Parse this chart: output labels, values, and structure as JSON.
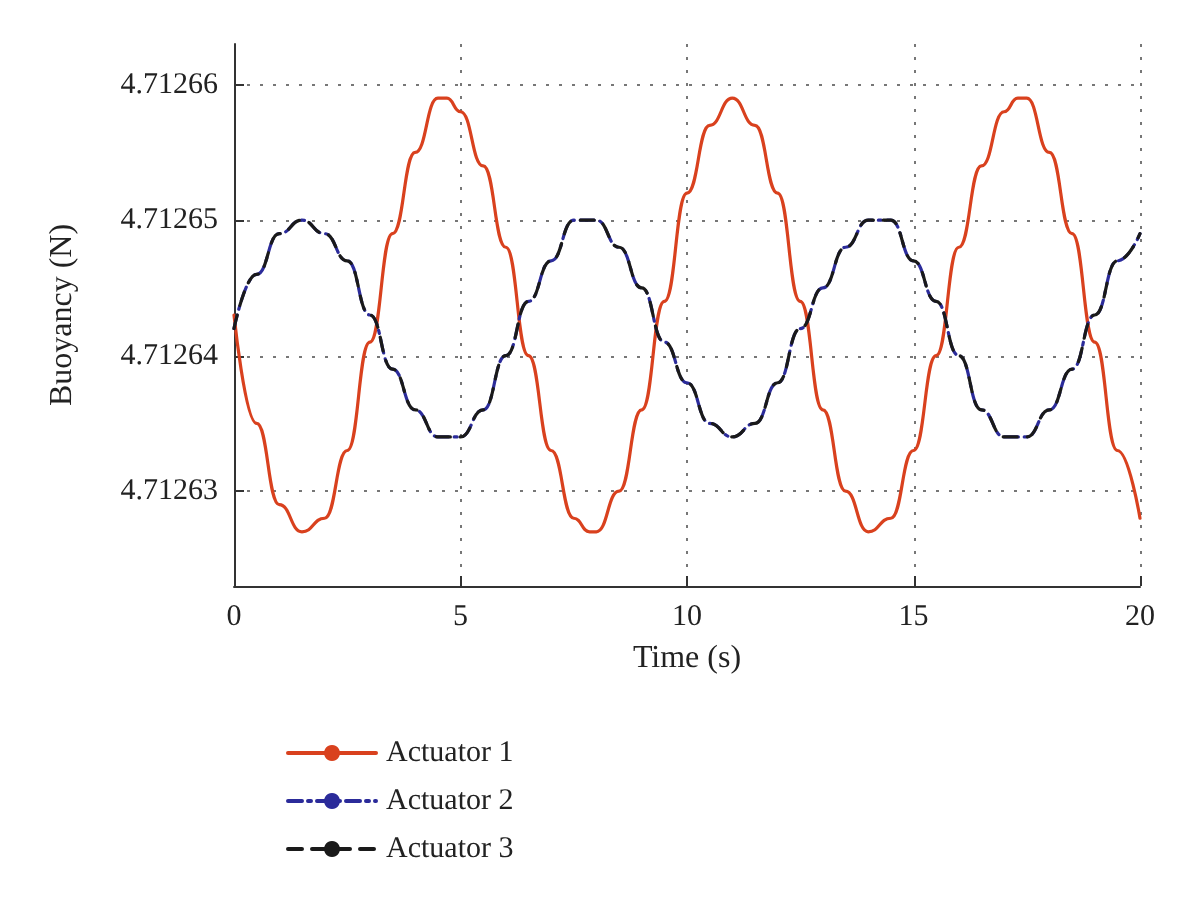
{
  "chart_data": {
    "type": "line",
    "xlabel": "Time (s)",
    "ylabel": "Buoyancy (N)",
    "x": [
      0,
      0.5,
      1,
      1.5,
      2,
      2.5,
      3,
      3.5,
      4,
      4.5,
      4.7,
      5,
      5.5,
      6,
      6.5,
      7,
      7.5,
      7.85,
      8,
      8.5,
      9,
      9.5,
      10,
      10.5,
      11,
      11.5,
      12,
      12.5,
      13,
      13.5,
      14,
      14.5,
      15,
      15.5,
      16,
      16.5,
      17,
      17.3,
      17.5,
      18,
      18.5,
      19,
      19.5,
      20
    ],
    "series": [
      {
        "name": "Actuator 1",
        "color": "#d9411e",
        "line_style": "solid",
        "values": [
          4.712643,
          4.712635,
          4.712629,
          4.712627,
          4.712628,
          4.712633,
          4.712641,
          4.712649,
          4.712655,
          4.712659,
          4.712659,
          4.712658,
          4.712654,
          4.712648,
          4.71264,
          4.712633,
          4.712628,
          4.712627,
          4.712627,
          4.71263,
          4.712636,
          4.712644,
          4.712652,
          4.712657,
          4.712659,
          4.712657,
          4.712652,
          4.712644,
          4.712636,
          4.71263,
          4.712627,
          4.712628,
          4.712633,
          4.71264,
          4.712648,
          4.712654,
          4.712658,
          4.712659,
          4.712659,
          4.712655,
          4.712649,
          4.712641,
          4.712633,
          4.712628
        ]
      },
      {
        "name": "Actuator 2",
        "color": "#2b2b9a",
        "line_style": "dashdot",
        "values": [
          4.712642,
          4.712646,
          4.712649,
          4.71265,
          4.712649,
          4.712647,
          4.712643,
          4.712639,
          4.712636,
          4.712634,
          4.712634,
          4.712634,
          4.712636,
          4.71264,
          4.712644,
          4.712647,
          4.71265,
          4.71265,
          4.71265,
          4.712648,
          4.712645,
          4.712641,
          4.712638,
          4.712635,
          4.712634,
          4.712635,
          4.712638,
          4.712642,
          4.712645,
          4.712648,
          4.71265,
          4.71265,
          4.712647,
          4.712644,
          4.71264,
          4.712636,
          4.712634,
          4.712634,
          4.712634,
          4.712636,
          4.712639,
          4.712643,
          4.712647,
          4.712649
        ]
      },
      {
        "name": "Actuator 3",
        "color": "#1a1a1a",
        "line_style": "dashed",
        "values": [
          4.712642,
          4.712646,
          4.712649,
          4.71265,
          4.712649,
          4.712647,
          4.712643,
          4.712639,
          4.712636,
          4.712634,
          4.712634,
          4.712634,
          4.712636,
          4.71264,
          4.712644,
          4.712647,
          4.71265,
          4.71265,
          4.71265,
          4.712648,
          4.712645,
          4.712641,
          4.712638,
          4.712635,
          4.712634,
          4.712635,
          4.712638,
          4.712642,
          4.712645,
          4.712648,
          4.71265,
          4.71265,
          4.712647,
          4.712644,
          4.71264,
          4.712636,
          4.712634,
          4.712634,
          4.712634,
          4.712636,
          4.712639,
          4.712643,
          4.712647,
          4.712649
        ]
      }
    ],
    "xlim": [
      0,
      20
    ],
    "xticks": [
      0,
      5,
      10,
      15,
      20
    ],
    "ylim": [
      4.712623,
      4.712663
    ],
    "yticks": [
      4.71263,
      4.71264,
      4.71265,
      4.71266
    ],
    "grid": true,
    "legend": "bottom left",
    "marker": "none"
  }
}
